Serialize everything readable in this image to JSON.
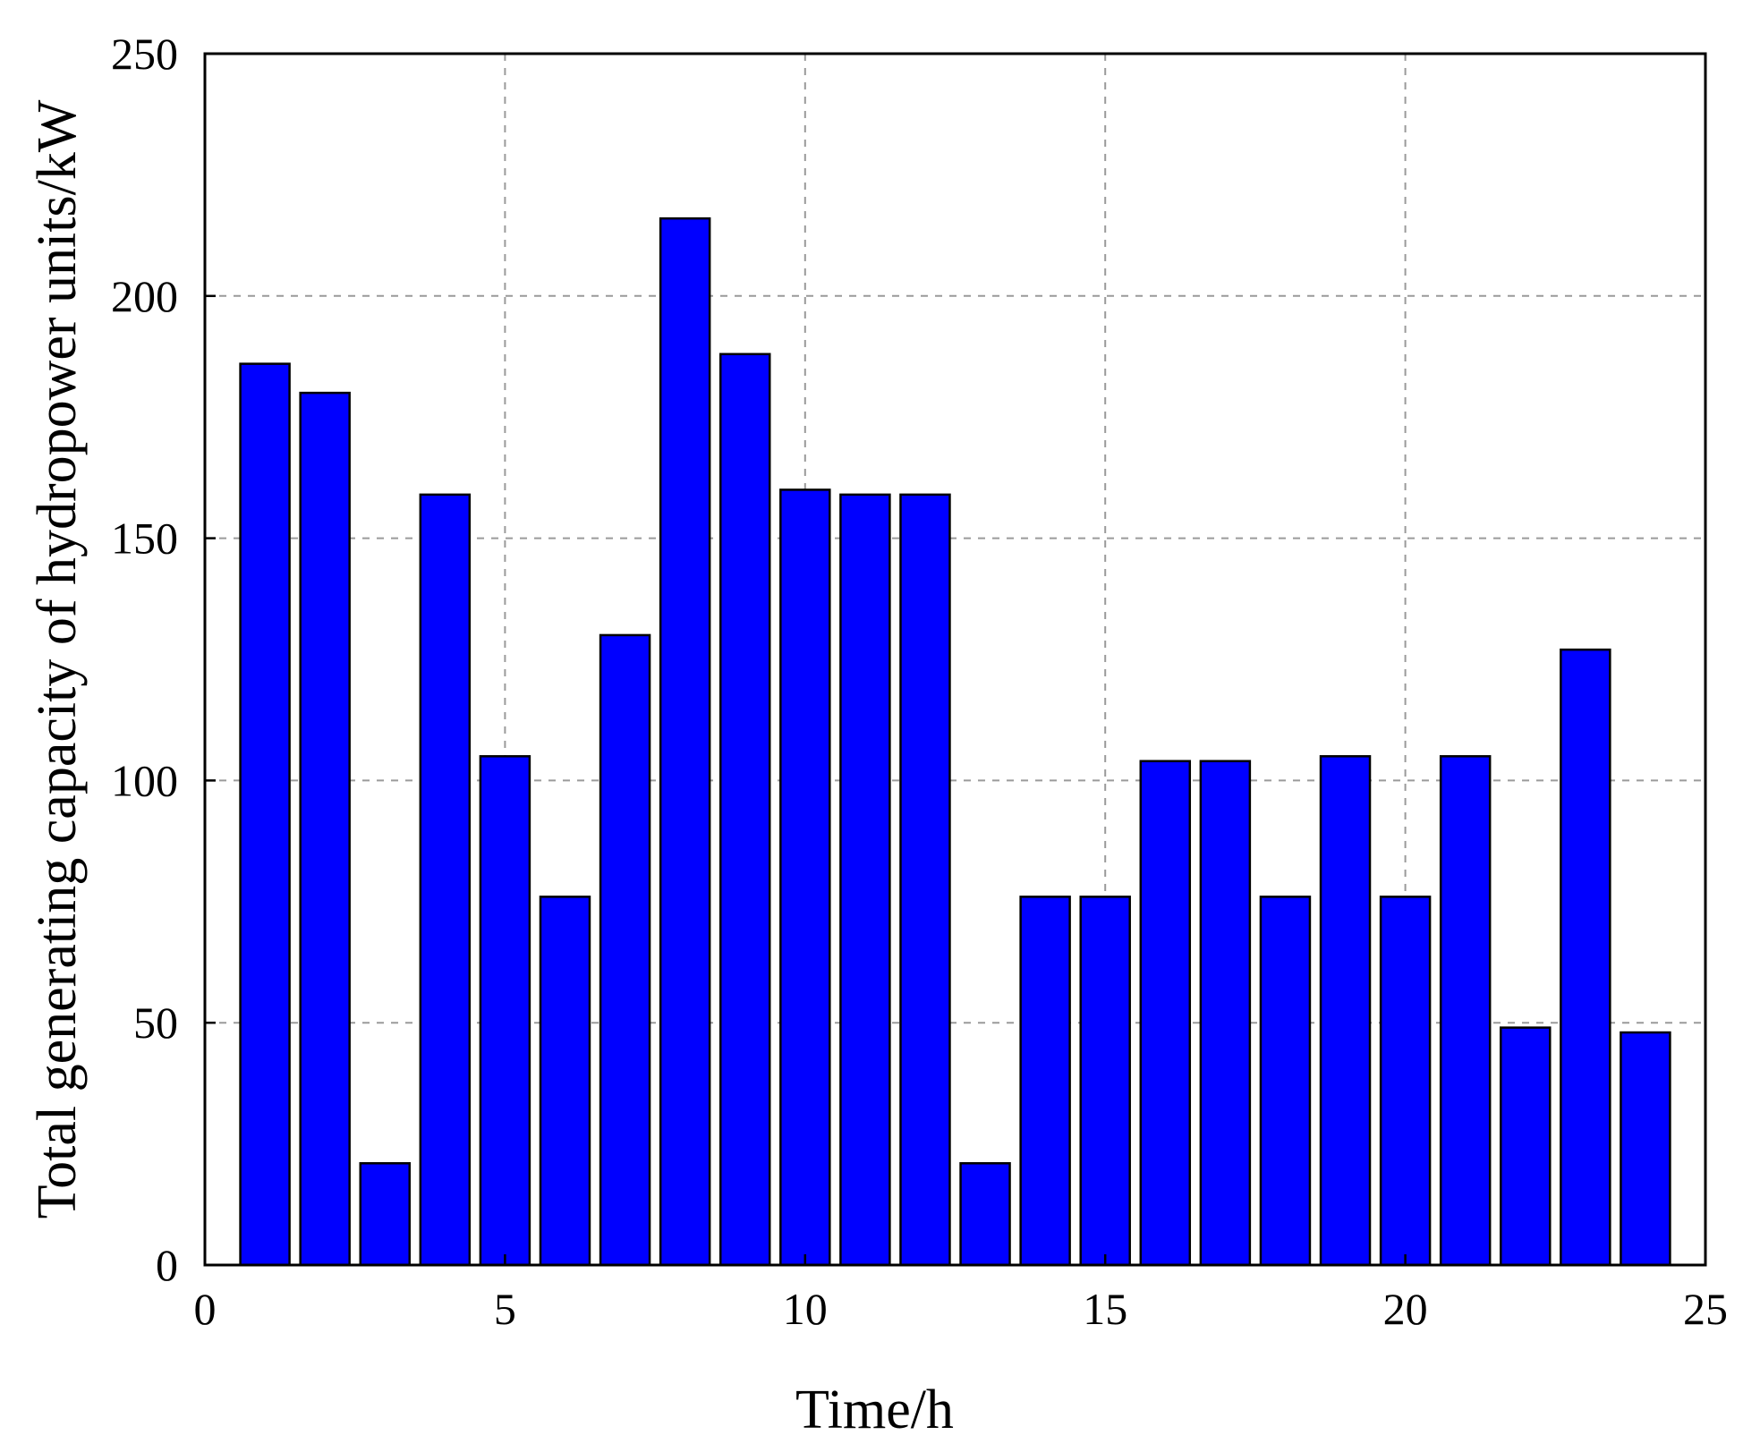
{
  "chart_data": {
    "type": "bar",
    "title": "",
    "xlabel": "Time/h",
    "ylabel": "Total generating capacity of hydropower units/kW",
    "xlim": [
      0,
      25
    ],
    "ylim": [
      0,
      250
    ],
    "xticks": [
      0,
      5,
      10,
      15,
      20,
      25
    ],
    "yticks": [
      0,
      50,
      100,
      150,
      200,
      250
    ],
    "grid": true,
    "bar_color": "#0000ff",
    "x": [
      1,
      2,
      3,
      4,
      5,
      6,
      7,
      8,
      9,
      10,
      11,
      12,
      13,
      14,
      15,
      16,
      17,
      18,
      19,
      20,
      21,
      22,
      23,
      24
    ],
    "values": [
      186,
      180,
      21,
      159,
      105,
      76,
      130,
      216,
      188,
      160,
      159,
      159,
      21,
      76,
      76,
      104,
      104,
      76,
      105,
      76,
      105,
      49,
      127,
      48
    ]
  }
}
